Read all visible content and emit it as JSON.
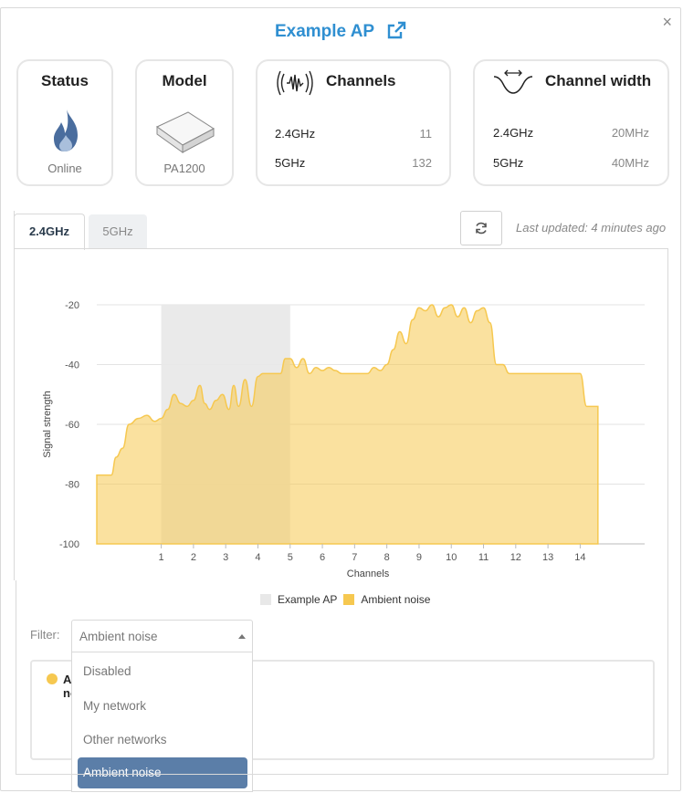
{
  "header": {
    "title": "Example AP",
    "close": "×"
  },
  "status_card": {
    "title": "Status",
    "value": "Online"
  },
  "model_card": {
    "title": "Model",
    "value": "PA1200"
  },
  "channels_card": {
    "title": "Channels",
    "rows": [
      {
        "label": "2.4GHz",
        "value": "11"
      },
      {
        "label": "5GHz",
        "value": "132"
      }
    ]
  },
  "width_card": {
    "title": "Channel width",
    "rows": [
      {
        "label": "2.4GHz",
        "value": "20MHz"
      },
      {
        "label": "5GHz",
        "value": "40MHz"
      }
    ]
  },
  "tabs": [
    {
      "label": "2.4GHz",
      "active": true
    },
    {
      "label": "5GHz",
      "active": false
    }
  ],
  "last_updated": "Last updated: 4 minutes ago",
  "chart_data": {
    "type": "area",
    "xlabel": "Channels",
    "ylabel": "Signal strength",
    "xlim": [
      -1,
      16
    ],
    "ylim": [
      -100,
      -20
    ],
    "yticks": [
      -20,
      -40,
      -60,
      -80,
      -100
    ],
    "xticks": [
      1,
      2,
      3,
      4,
      5,
      6,
      7,
      8,
      9,
      10,
      11,
      12,
      13,
      14
    ],
    "grid": true,
    "legend_position": "bottom",
    "series": [
      {
        "name": "Example AP",
        "kind": "band",
        "color": "#e8e8e8",
        "x": [
          1,
          5
        ],
        "values": [
          -20,
          -100
        ]
      },
      {
        "name": "Ambient noise",
        "kind": "area",
        "color": "#f6c850",
        "x": [
          -1,
          -0.55,
          -0.4,
          -0.2,
          0,
          0.3,
          0.55,
          0.8,
          1,
          1.2,
          1.4,
          1.6,
          1.8,
          2,
          2.2,
          2.35,
          2.5,
          2.7,
          2.9,
          3.1,
          3.25,
          3.4,
          3.6,
          3.8,
          4,
          4.15,
          4.3,
          4.5,
          4.7,
          4.85,
          5,
          5.2,
          5.4,
          5.6,
          5.8,
          6,
          6.2,
          6.4,
          6.6,
          6.8,
          7,
          7.2,
          7.4,
          7.6,
          7.8,
          8,
          8.2,
          8.4,
          8.6,
          8.8,
          9,
          9.2,
          9.4,
          9.6,
          9.8,
          10,
          10.2,
          10.4,
          10.6,
          10.8,
          11,
          11.2,
          11.4,
          11.6,
          11.8,
          12,
          12.5,
          13,
          13.5,
          14,
          14.2,
          14.55,
          14.55
        ],
        "values": [
          -77,
          -77,
          -71,
          -68,
          -60,
          -58,
          -57,
          -59,
          -58,
          -55,
          -50,
          -53,
          -54,
          -52,
          -47,
          -53,
          -55,
          -52,
          -50,
          -55,
          -47,
          -54,
          -45,
          -54,
          -44,
          -43,
          -43,
          -43,
          -43,
          -38,
          -38,
          -41,
          -38,
          -43,
          -41,
          -42,
          -41,
          -42,
          -43,
          -43,
          -43,
          -43,
          -43,
          -41,
          -42,
          -40,
          -35,
          -29,
          -33,
          -25,
          -21,
          -22,
          -20,
          -24,
          -21,
          -20,
          -24,
          -21,
          -26,
          -22,
          -21,
          -26,
          -40,
          -40,
          -43,
          -43,
          -43,
          -43,
          -43,
          -43,
          -54,
          -54,
          -100
        ]
      }
    ]
  },
  "legend": [
    {
      "label": "Example AP",
      "color": "#e8e8e8"
    },
    {
      "label": "Ambient noise",
      "color": "#f6c850"
    }
  ],
  "filter": {
    "label": "Filter:",
    "selected": "Ambient noise",
    "options": [
      "Disabled",
      "My network",
      "Other networks",
      "Ambient noise"
    ]
  },
  "results": {
    "first_item": "Ambient noise",
    "dot_color": "#f6c850"
  }
}
